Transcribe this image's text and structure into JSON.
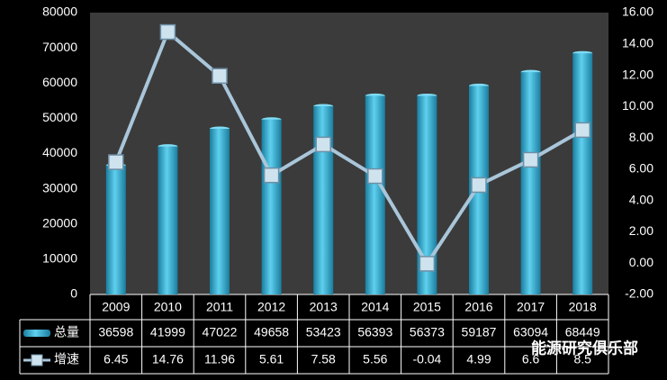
{
  "chart_data": {
    "type": "bar",
    "categories": [
      "2009",
      "2010",
      "2011",
      "2012",
      "2013",
      "2014",
      "2015",
      "2016",
      "2017",
      "2018"
    ],
    "series": [
      {
        "name": "总量",
        "type": "bar",
        "color": "#2aa6cc",
        "values": [
          36598,
          41999,
          47022,
          49658,
          53423,
          56393,
          56373,
          59187,
          63094,
          68449
        ]
      },
      {
        "name": "增速",
        "type": "line",
        "axis": "y2",
        "color": "#a9c6da",
        "values": [
          6.45,
          14.76,
          11.96,
          5.61,
          7.58,
          5.56,
          -0.04,
          4.99,
          6.6,
          8.5
        ]
      }
    ],
    "ylim": [
      0,
      80000
    ],
    "yticks": [
      0,
      10000,
      20000,
      30000,
      40000,
      50000,
      60000,
      70000,
      80000
    ],
    "y2lim": [
      -2,
      16
    ],
    "y2ticks": [
      {
        "value": -2,
        "label": "-2.00"
      },
      {
        "value": 0,
        "label": "0.00"
      },
      {
        "value": 2,
        "label": "2.00"
      },
      {
        "value": 4,
        "label": "4.00"
      },
      {
        "value": 6,
        "label": "6.00"
      },
      {
        "value": 8,
        "label": "8.00"
      },
      {
        "value": 10,
        "label": "10.00"
      },
      {
        "value": 12,
        "label": "12.00"
      },
      {
        "value": 14,
        "label": "14.00"
      },
      {
        "value": 16,
        "label": "16.00"
      }
    ],
    "grid": false,
    "watermark": "能源研究俱乐部"
  }
}
